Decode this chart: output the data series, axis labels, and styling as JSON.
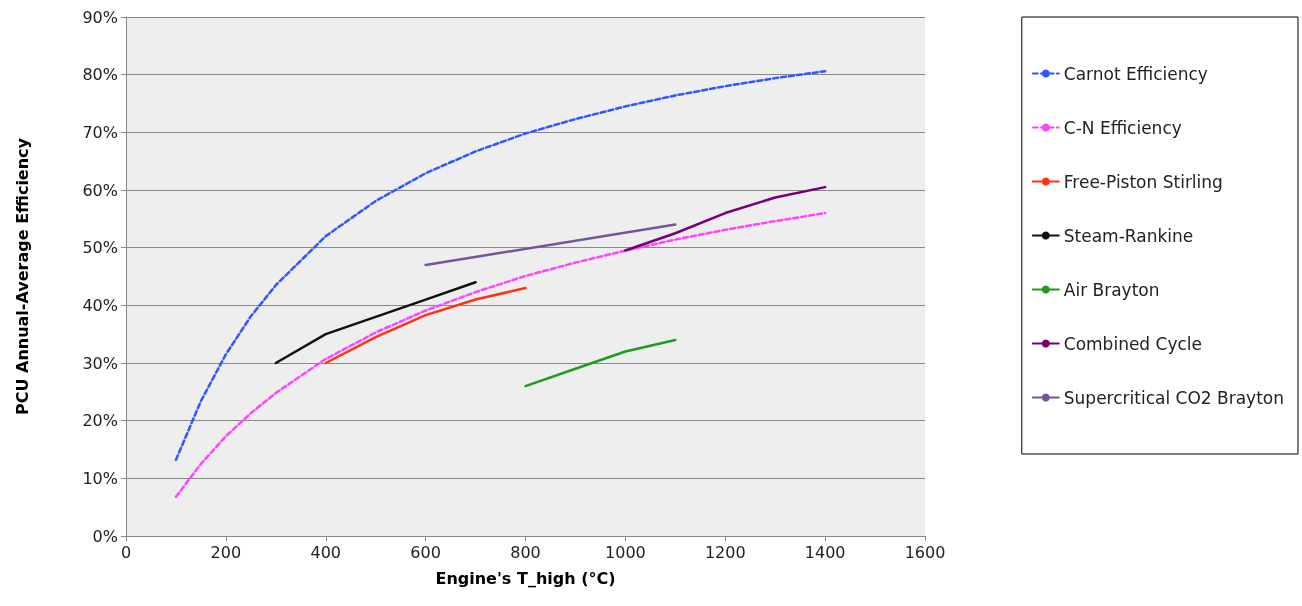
{
  "chart_data": {
    "type": "line",
    "xlabel": "Engine's T_high (°C)",
    "ylabel": "PCU Annual-Average Efficiency",
    "xlim": [
      0,
      1600
    ],
    "xticks": [
      0,
      200,
      400,
      600,
      800,
      1000,
      1200,
      1400,
      1600
    ],
    "ylim": [
      0,
      90
    ],
    "yticks": [
      {
        "value": 0,
        "label": "0%"
      },
      {
        "value": 10,
        "label": "10%"
      },
      {
        "value": 20,
        "label": "20%"
      },
      {
        "value": 30,
        "label": "30%"
      },
      {
        "value": 40,
        "label": "40%"
      },
      {
        "value": 50,
        "label": "50%"
      },
      {
        "value": 60,
        "label": "60%"
      },
      {
        "value": 70,
        "label": "70%"
      },
      {
        "value": 80,
        "label": "80%"
      },
      {
        "value": 90,
        "label": "90%"
      }
    ],
    "grid": "y",
    "legend": "right",
    "marker": "none",
    "series": [
      {
        "name": "Carnot Efficiency",
        "color": "#3355ff",
        "line_style": "dashed",
        "x": [
          100,
          150,
          200,
          250,
          300,
          400,
          500,
          600,
          700,
          800,
          900,
          1000,
          1100,
          1200,
          1300,
          1400
        ],
        "values": [
          13.2,
          23.4,
          31.5,
          38.1,
          43.5,
          52,
          58.1,
          62.9,
          66.7,
          69.8,
          72.3,
          74.5,
          76.4,
          78,
          79.4,
          80.6
        ]
      },
      {
        "name": "C-N Efficiency",
        "color": "#ff44ff",
        "line_style": "dashed",
        "x": [
          100,
          150,
          200,
          250,
          300,
          400,
          500,
          600,
          700,
          800,
          900,
          1000,
          1100,
          1200,
          1300,
          1400
        ],
        "values": [
          6.8,
          12.5,
          17.3,
          21.3,
          24.8,
          30.7,
          35.3,
          39.1,
          42.3,
          45.1,
          47.4,
          49.5,
          51.4,
          53.1,
          54.6,
          56
        ]
      },
      {
        "name": "Free-Piston Stirling",
        "color": "#ff3311",
        "line_style": "solid",
        "x": [
          400,
          500,
          600,
          700,
          800
        ],
        "values": [
          30,
          34.5,
          38.3,
          41,
          43
        ]
      },
      {
        "name": "Steam-Rankine",
        "color": "#111111",
        "line_style": "solid",
        "x": [
          300,
          400,
          500,
          600,
          700
        ],
        "values": [
          30,
          35,
          38,
          41,
          44
        ]
      },
      {
        "name": "Air Brayton",
        "color": "#229922",
        "line_style": "solid",
        "x": [
          800,
          900,
          1000,
          1100
        ],
        "values": [
          26,
          29,
          32,
          34
        ]
      },
      {
        "name": "Combined Cycle",
        "color": "#770077",
        "line_style": "solid",
        "x": [
          1000,
          1100,
          1200,
          1300,
          1400
        ],
        "values": [
          49.5,
          52.5,
          56,
          58.7,
          60.5
        ]
      },
      {
        "name": "Supercritical CO2 Brayton",
        "color": "#775599",
        "line_style": "solid",
        "x": [
          600,
          1100
        ],
        "values": [
          47,
          54
        ]
      }
    ]
  }
}
